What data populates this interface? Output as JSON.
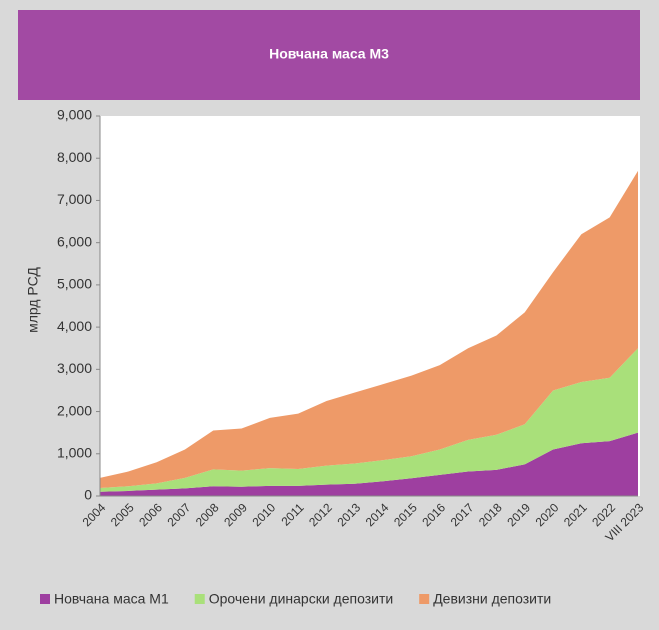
{
  "chart_data": {
    "type": "area",
    "stacked": true,
    "title": "Новчана маса М3",
    "y_label": "млрд РСД",
    "categories": [
      "2004",
      "2005",
      "2006",
      "2007",
      "2008",
      "2009",
      "2010",
      "2011",
      "2012",
      "2013",
      "2014",
      "2015",
      "2016",
      "2017",
      "2018",
      "2019",
      "2020",
      "2021",
      "2022",
      "VIII 2023"
    ],
    "series": [
      {
        "name": "Новчана маса М1",
        "color": "#9e3fa0",
        "values": [
          100,
          120,
          150,
          180,
          230,
          220,
          240,
          240,
          270,
          290,
          350,
          420,
          500,
          580,
          620,
          750,
          1100,
          1250,
          1300,
          1500
        ]
      },
      {
        "name": "Орочени динарски депозити",
        "color": "#a9e07a",
        "values": [
          90,
          110,
          150,
          250,
          400,
          380,
          420,
          400,
          450,
          480,
          500,
          520,
          600,
          750,
          830,
          950,
          1400,
          1450,
          1500,
          2000
        ]
      },
      {
        "name": "Девизни депозити",
        "color": "#ee9a68",
        "values": [
          240,
          350,
          500,
          670,
          920,
          1000,
          1190,
          1310,
          1530,
          1680,
          1800,
          1910,
          2000,
          2170,
          2350,
          2650,
          2800,
          3500,
          3800,
          4200
        ]
      }
    ],
    "ylim": [
      0,
      9000
    ],
    "yticks": [
      0,
      {
        "value": 1000,
        "label": "1,000"
      },
      {
        "value": 2000,
        "label": "2,000"
      },
      {
        "value": 3000,
        "label": "3,000"
      },
      {
        "value": 4000,
        "label": "4,000"
      },
      {
        "value": 5000,
        "label": "5,000"
      },
      {
        "value": 6000,
        "label": "6,000"
      },
      {
        "value": 7000,
        "label": "7,000"
      },
      {
        "value": 8000,
        "label": "8,000"
      },
      {
        "value": 9000,
        "label": "9,000"
      }
    ],
    "grid": false,
    "legend": "bottom"
  }
}
